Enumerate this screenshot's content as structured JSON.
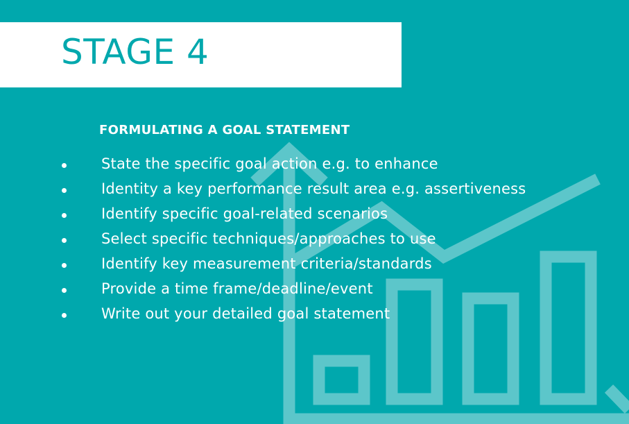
{
  "colors": {
    "background": "#00A8AD",
    "accent": "#00A8AD",
    "graphic": "#5CC6CA",
    "text_on_dark": "#FFFFFF",
    "title_box": "#FFFFFF"
  },
  "decor": {
    "icon": "bar-chart-trend-arrow-icon"
  },
  "header": {
    "title": "STAGE 4"
  },
  "section": {
    "subtitle": "FORMULATING A GOAL STATEMENT",
    "items": [
      "State the specific goal action e.g. to enhance",
      "Identity a key performance result area e.g. assertiveness",
      "Identify specific goal-related scenarios",
      "Select specific techniques/approaches to use",
      "Identify key measurement criteria/standards",
      "Provide a time frame/deadline/event",
      "Write out your detailed goal statement"
    ]
  }
}
